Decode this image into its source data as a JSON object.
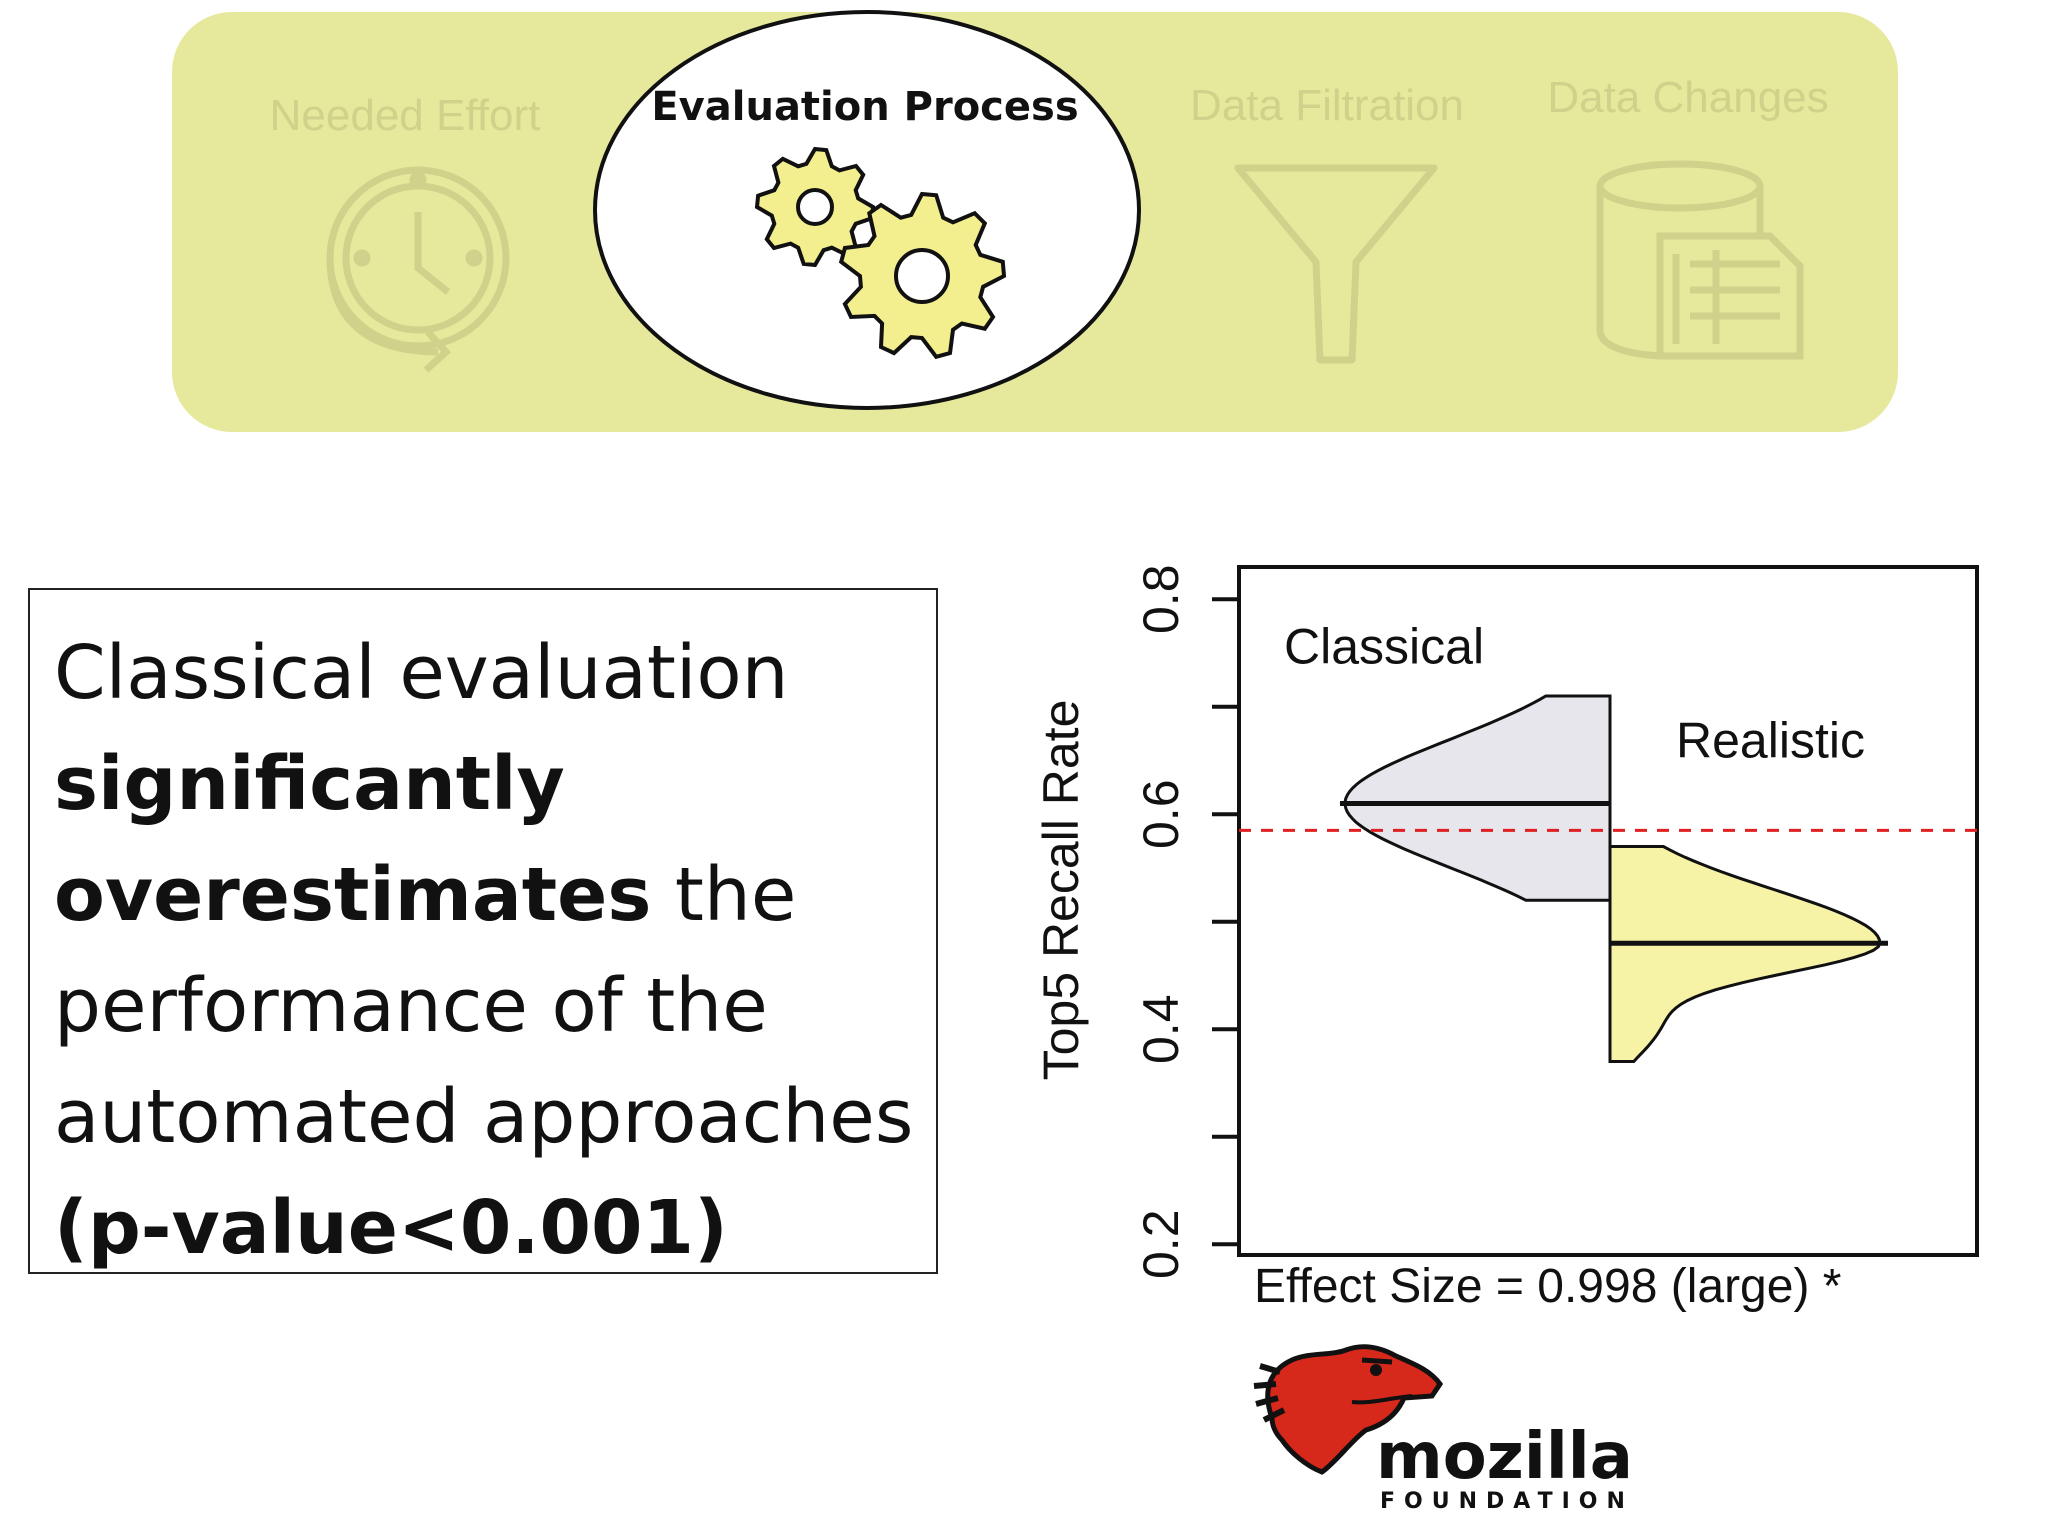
{
  "process_banner": {
    "steps": [
      {
        "label": "Needed Effort",
        "icon": "clock-cycle-icon",
        "active": false
      },
      {
        "label": "Evaluation Process",
        "icon": "gears-icon",
        "active": true
      },
      {
        "label": "Data Filtration",
        "icon": "funnel-icon",
        "active": false
      },
      {
        "label": "Data Changes",
        "icon": "database-document-icon",
        "active": false
      }
    ]
  },
  "conclusion": {
    "line1": "Classical evaluation",
    "line2_bold": "significantly",
    "line3_bold": "overestimates",
    "line3_rest": " the",
    "line4": "performance of the",
    "line5": "automated approaches",
    "line6_bold": "(p-value<0.001)"
  },
  "chart_data": {
    "type": "violin",
    "ylabel": "Top5 Recall Rate",
    "yticks": [
      0.2,
      0.4,
      0.6,
      0.8
    ],
    "ylim": [
      0.19,
      0.83
    ],
    "xlabel": "Effect Size = 0.998 (large) *",
    "reference_line": {
      "y": 0.585,
      "style": "dashed",
      "color": "#e02020"
    },
    "series": [
      {
        "name": "Classical",
        "side": "left",
        "median": 0.61,
        "range": [
          0.52,
          0.71
        ],
        "fill": "#e6e6ec"
      },
      {
        "name": "Realistic",
        "side": "right",
        "median": 0.48,
        "range": [
          0.37,
          0.57
        ],
        "fill": "#f6f3a6"
      }
    ]
  },
  "logo": {
    "text": "mozilla",
    "subtext": "FOUNDATION",
    "icon": "dinosaur-head-icon"
  },
  "colors": {
    "banner": "#e6e89c",
    "faded_text": "#cfd28a",
    "gear_fill": "#f3ef8e",
    "accent_red": "#e02020"
  }
}
